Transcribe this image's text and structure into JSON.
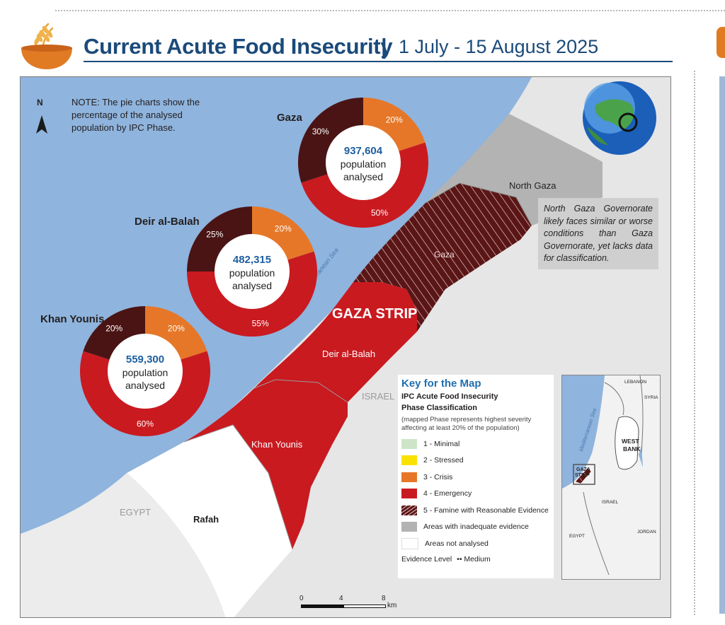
{
  "header": {
    "title": "Current Acute Food Insecurity",
    "separator": "|",
    "period": "1 July - 15 August 2025"
  },
  "map": {
    "note": "NOTE: The pie charts show the percentage of the analysed population by IPC Phase.",
    "north_label": "N",
    "labels": {
      "region": "GAZA STRIP",
      "north_gaza": "North Gaza",
      "gaza": "Gaza",
      "deir_al_balah": "Deir al-Balah",
      "khan_younis": "Khan Younis",
      "rafah": "Rafah",
      "egypt": "EGYPT",
      "israel": "ISRAEL",
      "sea": "Mediterranean Sea"
    },
    "callout": "North Gaza Governorate likely faces similar or worse conditions than Gaza Governorate, yet lacks data for classification.",
    "scale": {
      "ticks": [
        "0",
        "4",
        "8"
      ],
      "unit": "km"
    }
  },
  "colors": {
    "sea": "#8fb4dd",
    "land": "#e6e6e6",
    "phase1": "#cde5c6",
    "phase2": "#f9e201",
    "phase3": "#e67728",
    "phase4": "#c91a20",
    "phase5": "#4a1414",
    "inadequate": "#b3b3b3",
    "not_analysed": "#ffffff",
    "title": "#1a4a7a",
    "pie_value": "#1f5fa0"
  },
  "chart_data": [
    {
      "type": "pie",
      "title": "Gaza",
      "population": "937,604",
      "population_label": [
        "population",
        "analysed"
      ],
      "categories": [
        "Phase 3 - Crisis",
        "Phase 4 - Emergency",
        "Phase 5 - Famine"
      ],
      "values": [
        20,
        50,
        30
      ],
      "value_labels": [
        "20%",
        "50%",
        "30%"
      ]
    },
    {
      "type": "pie",
      "title": "Deir al-Balah",
      "population": "482,315",
      "population_label": [
        "population",
        "analysed"
      ],
      "categories": [
        "Phase 3 - Crisis",
        "Phase 4 - Emergency",
        "Phase 5 - Famine"
      ],
      "values": [
        20,
        55,
        25
      ],
      "value_labels": [
        "20%",
        "55%",
        "25%"
      ]
    },
    {
      "type": "pie",
      "title": "Khan Younis",
      "population": "559,300",
      "population_label": [
        "population",
        "analysed"
      ],
      "categories": [
        "Phase 3 - Crisis",
        "Phase 4 - Emergency",
        "Phase 5 - Famine"
      ],
      "values": [
        20,
        60,
        20
      ],
      "value_labels": [
        "20%",
        "60%",
        "20%"
      ]
    }
  ],
  "legend": {
    "title": "Key for the Map",
    "subtitle_line1": "IPC Acute Food Insecurity",
    "subtitle_line2": "Phase Classification",
    "note": "(mapped Phase represents highest severity affecting at least 20% of the population)",
    "items": [
      {
        "label": "1 - Minimal",
        "color": "#cde5c6"
      },
      {
        "label": "2 - Stressed",
        "color": "#f9e201"
      },
      {
        "label": "3 - Crisis",
        "color": "#e67728"
      },
      {
        "label": "4 - Emergency",
        "color": "#c91a20"
      },
      {
        "label": "5 - Famine with Reasonable Evidence",
        "color": "#4a1414",
        "hatched": true
      },
      {
        "label": "Areas with inadequate evidence",
        "color": "#b3b3b3"
      },
      {
        "label": "Areas not analysed",
        "color": "#ffffff"
      }
    ],
    "evidence_label": "Evidence Level",
    "evidence_symbol": "••",
    "evidence_value": "Medium"
  },
  "inset": {
    "labels": {
      "lebanon": "LEBANON",
      "syria": "SYRIA",
      "west_bank_1": "WEST",
      "west_bank_2": "BANK",
      "gaza_1": "GAZA",
      "gaza_2": "STRIP",
      "israel": "ISRAEL",
      "jordan": "JORDAN",
      "egypt": "EGYPT",
      "sea": "Mediterranean Sea"
    }
  }
}
